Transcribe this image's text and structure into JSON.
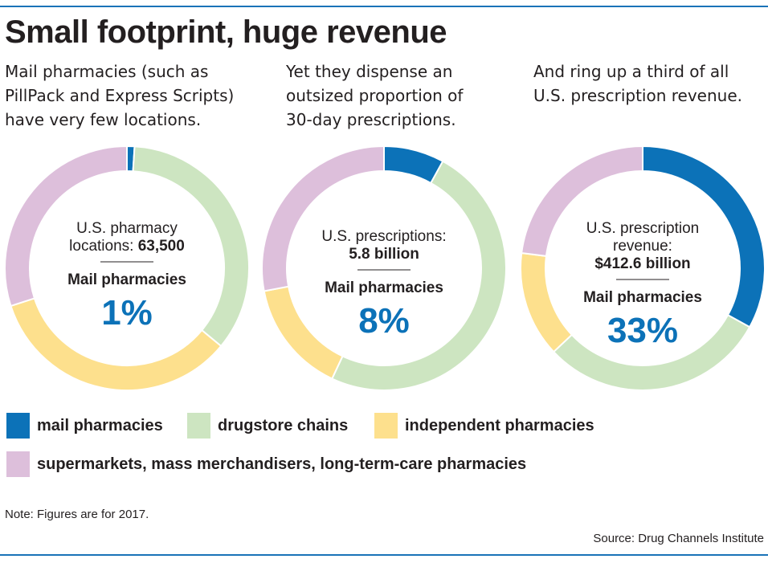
{
  "title": "Small footprint, huge revenue",
  "colors": {
    "rule": "#1a73b8",
    "mail": "#0c72b8",
    "drugstore": "#cde5c1",
    "independent": "#fde08d",
    "supermarkets": "#ddbfdb",
    "accent_text": "#0c72b8"
  },
  "subtitles": [
    "Mail pharmacies (such as\nPillPack and Express Scripts)\nhave very few locations.",
    "Yet they dispense an\noutsized proportion of\n30-day prescriptions.",
    "And ring up a third of all\nU.S. prescription revenue."
  ],
  "chart_data": [
    {
      "type": "pie",
      "center_label_lines": [
        {
          "text": "U.S. pharmacy",
          "bold": false
        },
        {
          "parts": [
            {
              "text": "locations: ",
              "bold": false
            },
            {
              "text": "63,500",
              "bold": true
            }
          ]
        }
      ],
      "headline": "Mail pharmacies",
      "value_text": "1%",
      "slices": [
        {
          "name": "mail pharmacies",
          "value": 1
        },
        {
          "name": "drugstore chains",
          "value": 35
        },
        {
          "name": "independent pharmacies",
          "value": 34
        },
        {
          "name": "supermarkets, mass merchandisers, long-term-care pharmacies",
          "value": 30
        }
      ]
    },
    {
      "type": "pie",
      "center_label_lines": [
        {
          "text": "U.S. prescriptions:",
          "bold": false
        },
        {
          "text": "5.8 billion",
          "bold": true
        }
      ],
      "headline": "Mail pharmacies",
      "value_text": "8%",
      "slices": [
        {
          "name": "mail pharmacies",
          "value": 8
        },
        {
          "name": "drugstore chains",
          "value": 49
        },
        {
          "name": "independent pharmacies",
          "value": 15
        },
        {
          "name": "supermarkets, mass merchandisers, long-term-care pharmacies",
          "value": 28
        }
      ]
    },
    {
      "type": "pie",
      "center_label_lines": [
        {
          "text": "U.S. prescription",
          "bold": false
        },
        {
          "text": "revenue:",
          "bold": false
        },
        {
          "text": "$412.6 billion",
          "bold": true
        }
      ],
      "headline": "Mail pharmacies",
      "value_text": "33%",
      "slices": [
        {
          "name": "mail pharmacies",
          "value": 33
        },
        {
          "name": "drugstore chains",
          "value": 30
        },
        {
          "name": "independent pharmacies",
          "value": 14
        },
        {
          "name": "supermarkets, mass merchandisers, long-term-care pharmacies",
          "value": 23
        }
      ]
    }
  ],
  "legend": [
    {
      "label": "mail pharmacies",
      "color": "#0c72b8"
    },
    {
      "label": "drugstore chains",
      "color": "#cde5c1"
    },
    {
      "label": "independent pharmacies",
      "color": "#fde08d"
    },
    {
      "label": "supermarkets, mass merchandisers, long-term-care pharmacies",
      "color": "#ddbfdb"
    }
  ],
  "note": "Note: Figures are for 2017.",
  "source": "Source: Drug Channels Institute"
}
